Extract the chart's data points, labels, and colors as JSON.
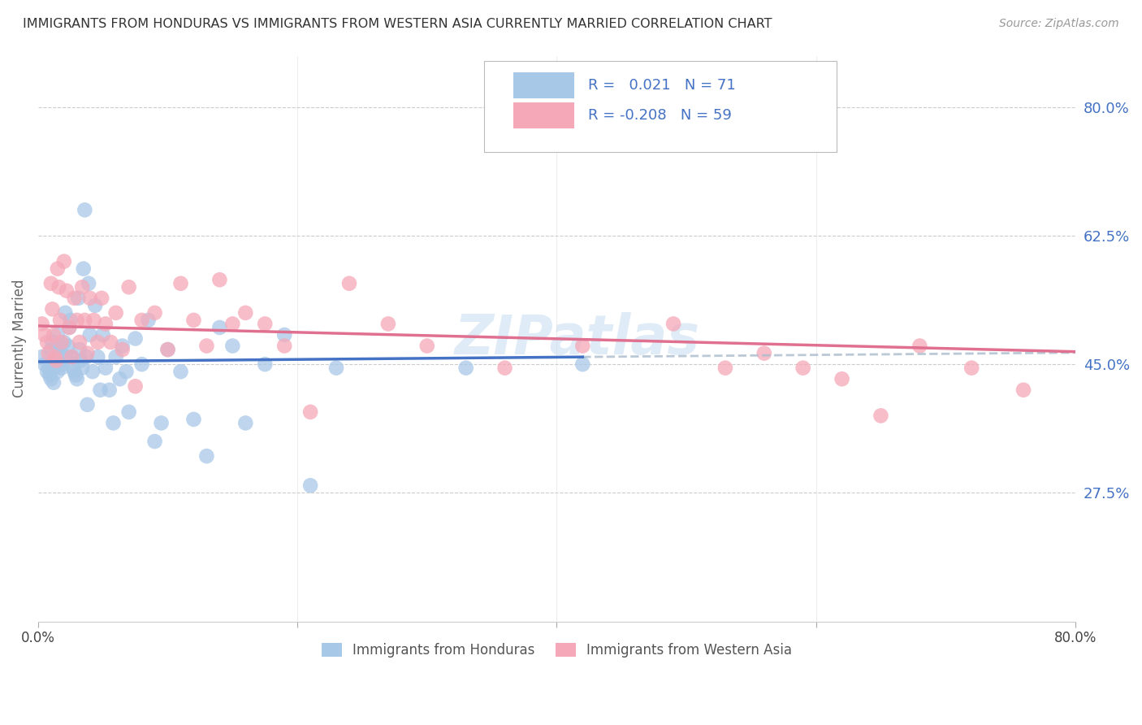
{
  "title": "IMMIGRANTS FROM HONDURAS VS IMMIGRANTS FROM WESTERN ASIA CURRENTLY MARRIED CORRELATION CHART",
  "source": "Source: ZipAtlas.com",
  "ylabel": "Currently Married",
  "legend_bottom": [
    "Immigrants from Honduras",
    "Immigrants from Western Asia"
  ],
  "r_honduras": 0.021,
  "n_honduras": 71,
  "r_western_asia": -0.208,
  "n_western_asia": 59,
  "color_honduras": "#a8c8e8",
  "color_western_asia": "#f5a8b8",
  "color_line_honduras": "#4472c4",
  "color_line_western_asia": "#e07090",
  "color_blue_text": "#4472c4",
  "yticks": [
    0.275,
    0.45,
    0.625,
    0.8
  ],
  "ytick_labels": [
    "27.5%",
    "45.0%",
    "62.5%",
    "80.0%"
  ],
  "xlim": [
    0.0,
    0.8
  ],
  "ylim": [
    0.1,
    0.87
  ],
  "background_color": "#ffffff",
  "grid_color": "#cccccc",
  "honduras_x": [
    0.003,
    0.005,
    0.007,
    0.008,
    0.009,
    0.01,
    0.01,
    0.011,
    0.012,
    0.012,
    0.013,
    0.014,
    0.015,
    0.015,
    0.016,
    0.017,
    0.018,
    0.018,
    0.019,
    0.02,
    0.021,
    0.022,
    0.023,
    0.024,
    0.025,
    0.026,
    0.027,
    0.028,
    0.029,
    0.03,
    0.031,
    0.032,
    0.033,
    0.034,
    0.035,
    0.036,
    0.037,
    0.038,
    0.039,
    0.04,
    0.042,
    0.044,
    0.046,
    0.048,
    0.05,
    0.052,
    0.055,
    0.058,
    0.06,
    0.063,
    0.065,
    0.068,
    0.07,
    0.075,
    0.08,
    0.085,
    0.09,
    0.095,
    0.1,
    0.11,
    0.12,
    0.13,
    0.14,
    0.15,
    0.16,
    0.175,
    0.19,
    0.21,
    0.23,
    0.33,
    0.42
  ],
  "honduras_y": [
    0.46,
    0.45,
    0.44,
    0.445,
    0.435,
    0.47,
    0.43,
    0.48,
    0.445,
    0.425,
    0.455,
    0.465,
    0.49,
    0.44,
    0.475,
    0.465,
    0.445,
    0.455,
    0.45,
    0.48,
    0.52,
    0.46,
    0.475,
    0.5,
    0.51,
    0.46,
    0.445,
    0.44,
    0.435,
    0.43,
    0.54,
    0.47,
    0.455,
    0.445,
    0.58,
    0.66,
    0.46,
    0.395,
    0.56,
    0.49,
    0.44,
    0.53,
    0.46,
    0.415,
    0.49,
    0.445,
    0.415,
    0.37,
    0.46,
    0.43,
    0.475,
    0.44,
    0.385,
    0.485,
    0.45,
    0.51,
    0.345,
    0.37,
    0.47,
    0.44,
    0.375,
    0.325,
    0.5,
    0.475,
    0.37,
    0.45,
    0.49,
    0.285,
    0.445,
    0.445,
    0.45
  ],
  "western_asia_x": [
    0.003,
    0.005,
    0.007,
    0.008,
    0.01,
    0.011,
    0.012,
    0.013,
    0.014,
    0.015,
    0.016,
    0.017,
    0.018,
    0.02,
    0.022,
    0.024,
    0.026,
    0.028,
    0.03,
    0.032,
    0.034,
    0.036,
    0.038,
    0.04,
    0.043,
    0.046,
    0.049,
    0.052,
    0.056,
    0.06,
    0.065,
    0.07,
    0.075,
    0.08,
    0.09,
    0.1,
    0.11,
    0.12,
    0.13,
    0.14,
    0.15,
    0.16,
    0.175,
    0.19,
    0.21,
    0.24,
    0.27,
    0.3,
    0.36,
    0.42,
    0.49,
    0.53,
    0.56,
    0.59,
    0.62,
    0.65,
    0.68,
    0.72,
    0.76
  ],
  "western_asia_y": [
    0.505,
    0.49,
    0.48,
    0.465,
    0.56,
    0.525,
    0.49,
    0.46,
    0.455,
    0.58,
    0.555,
    0.51,
    0.48,
    0.59,
    0.55,
    0.5,
    0.46,
    0.54,
    0.51,
    0.48,
    0.555,
    0.51,
    0.465,
    0.54,
    0.51,
    0.48,
    0.54,
    0.505,
    0.48,
    0.52,
    0.47,
    0.555,
    0.42,
    0.51,
    0.52,
    0.47,
    0.56,
    0.51,
    0.475,
    0.565,
    0.505,
    0.52,
    0.505,
    0.475,
    0.385,
    0.56,
    0.505,
    0.475,
    0.445,
    0.475,
    0.505,
    0.445,
    0.465,
    0.445,
    0.43,
    0.38,
    0.475,
    0.445,
    0.415
  ]
}
